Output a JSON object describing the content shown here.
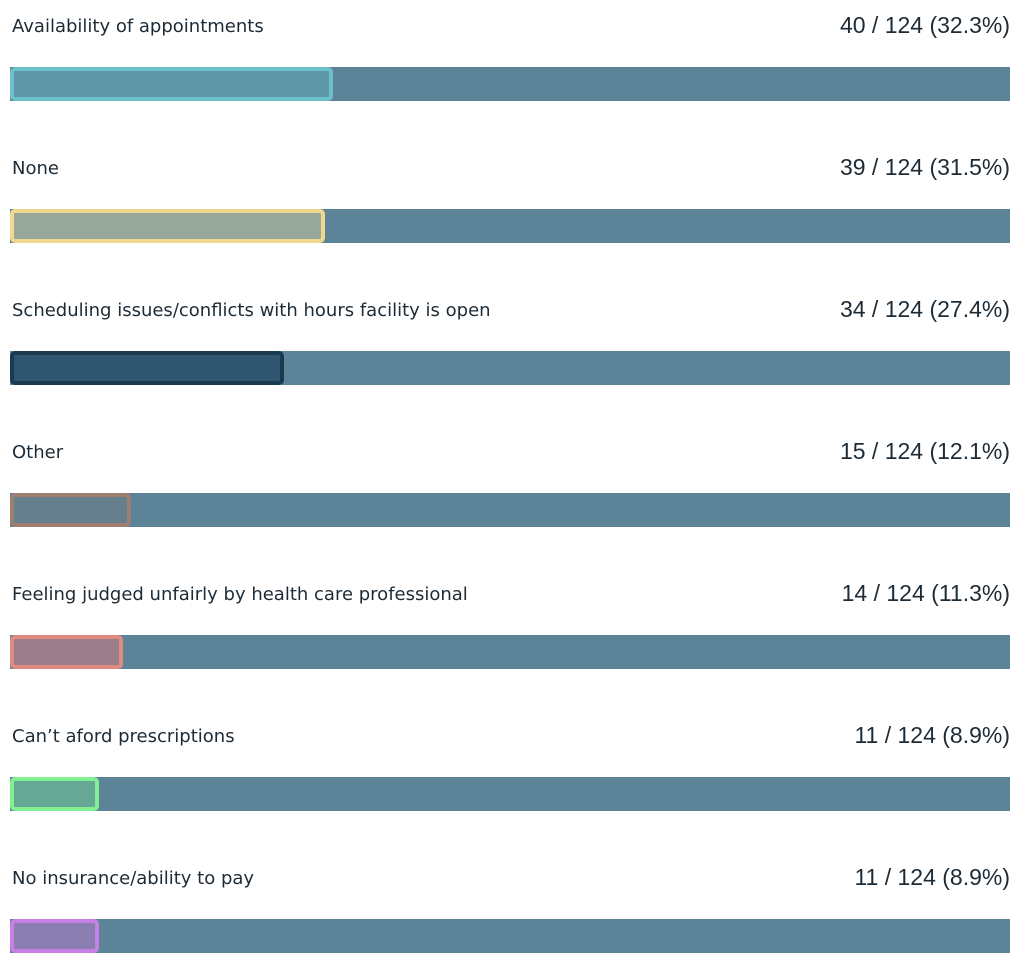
{
  "chart_data": {
    "type": "bar",
    "orientation": "horizontal",
    "categories": [
      "Availability of appointments",
      "None",
      "Scheduling issues/conflicts with hours facility is open",
      "Other",
      "Feeling judged unfairly by health care professional",
      "Can’t aford prescriptions",
      "No insurance/ability to pay"
    ],
    "values": [
      32.3,
      31.5,
      27.4,
      12.1,
      11.3,
      8.9,
      8.9
    ],
    "value_labels": [
      "40 / 124 (32.3%)",
      "39 / 124 (31.5%)",
      "34 / 124 (27.4%)",
      "15 / 124 (12.1%)",
      "14 / 124 (11.3%)",
      "11 / 124 (8.9%)",
      "11 / 124 (8.9%)"
    ],
    "colors": [
      "#5d97a8",
      "#97a89a",
      "#2e5670",
      "#667f8c",
      "#9a7f8a",
      "#67a894",
      "#8a7fb0"
    ],
    "outline_colors": [
      "#6cc0c9",
      "#f0d98f",
      "#1b3a52",
      "#9e7e6e",
      "#e08a80",
      "#80f090",
      "#c680e6"
    ],
    "track_color": "#5d8398",
    "xlim": [
      0,
      100
    ]
  }
}
